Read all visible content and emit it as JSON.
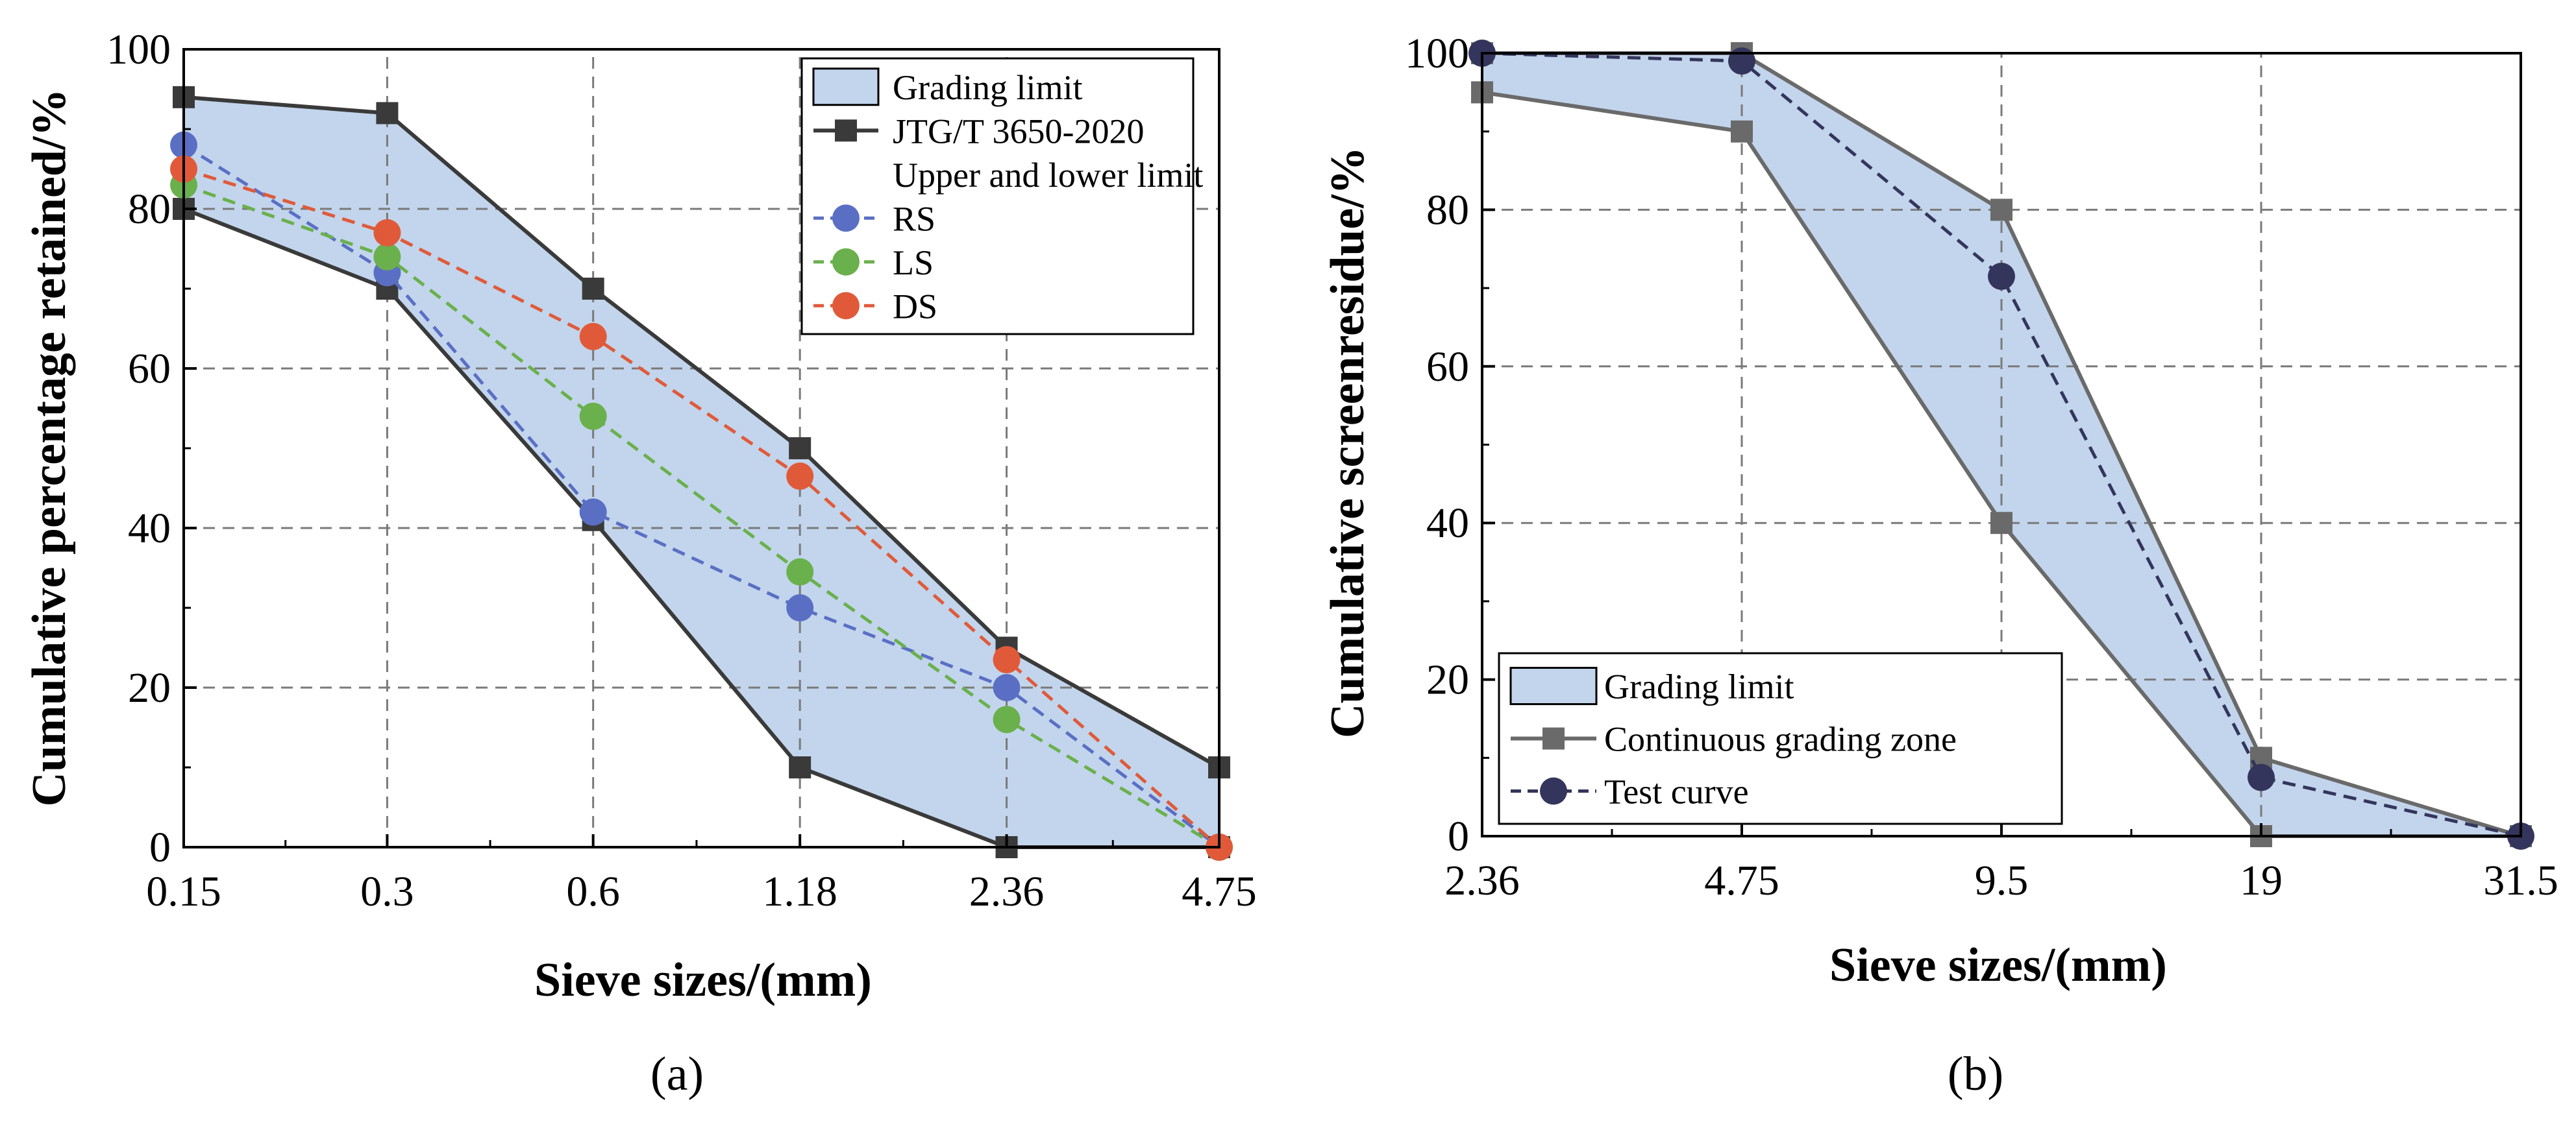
{
  "figure": {
    "panel_labels": [
      "(a)",
      "(b)"
    ]
  },
  "chart_data": [
    {
      "panel": "(a)",
      "type": "line",
      "title": "",
      "xlabel": "Sieve sizes/(mm)",
      "ylabel": "Cumulative percentage retained/%",
      "x_scale": "categorical-log",
      "categories": [
        "0.15",
        "0.3",
        "0.6",
        "1.18",
        "2.36",
        "4.75"
      ],
      "ylim": [
        0,
        100
      ],
      "yticks": [
        0,
        20,
        40,
        60,
        80,
        100
      ],
      "grid": true,
      "legend_position": "top-right",
      "band": {
        "name": "Grading limit",
        "upper": [
          94,
          92,
          70,
          50,
          25,
          10
        ],
        "lower": [
          80,
          70,
          41,
          10,
          0,
          0
        ],
        "color": "#c2d5ec"
      },
      "series": [
        {
          "name": "JTG/T 3650-2020",
          "legend_sub": "Upper and lower limit",
          "role": "limit",
          "upper": [
            94,
            92,
            70,
            50,
            25,
            10
          ],
          "lower": [
            80,
            70,
            41,
            10,
            0,
            0
          ],
          "color": "#3a3a3a",
          "marker": "square",
          "style": "solid"
        },
        {
          "name": "RS",
          "values": [
            88,
            72,
            42,
            30,
            20,
            0
          ],
          "color": "#5a6fc4",
          "marker": "circle",
          "style": "dashed"
        },
        {
          "name": "LS",
          "values": [
            83,
            74,
            54,
            34.5,
            16,
            0
          ],
          "color": "#6ab04c",
          "marker": "circle",
          "style": "dashed"
        },
        {
          "name": "DS",
          "values": [
            85,
            77,
            64,
            46.5,
            23.5,
            0
          ],
          "color": "#e05a3a",
          "marker": "circle",
          "style": "dashed"
        }
      ]
    },
    {
      "panel": "(b)",
      "type": "line",
      "title": "",
      "xlabel": "Sieve sizes/(mm)",
      "ylabel": "Cumulative screenresidue/%",
      "x_scale": "categorical",
      "categories": [
        "2.36",
        "4.75",
        "9.5",
        "19",
        "31.5"
      ],
      "ylim": [
        0,
        100
      ],
      "yticks": [
        0,
        20,
        40,
        60,
        80,
        100
      ],
      "grid": true,
      "legend_position": "bottom-left",
      "band": {
        "name": "Grading limit",
        "upper": [
          100,
          100,
          80,
          10,
          0
        ],
        "lower": [
          95,
          90,
          40,
          0,
          0
        ],
        "color": "#c2d5ec"
      },
      "series": [
        {
          "name": "Continuous grading zone",
          "role": "limit",
          "upper": [
            100,
            100,
            80,
            10,
            0
          ],
          "lower": [
            95,
            90,
            40,
            0,
            0
          ],
          "color": "#6a6a6a",
          "marker": "square",
          "style": "solid"
        },
        {
          "name": "Test curve",
          "values": [
            100,
            99,
            71.5,
            7.5,
            0
          ],
          "color": "#34355c",
          "marker": "circle",
          "style": "dashed"
        }
      ]
    }
  ]
}
